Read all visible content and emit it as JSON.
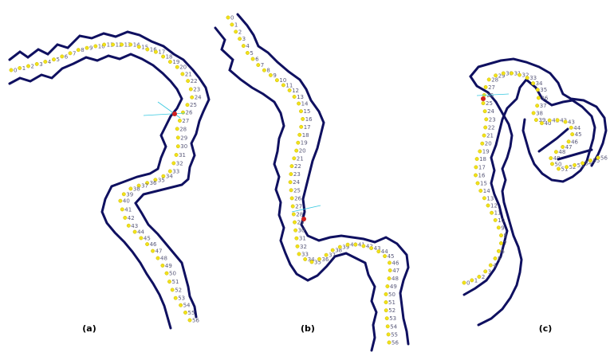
{
  "panels": [
    {
      "id": "a",
      "caption": "(a)",
      "labels": [
        "0",
        "1",
        "2",
        "3",
        "4",
        "5",
        "6",
        "7",
        "8",
        "9",
        "10",
        "11",
        "12",
        "13",
        "14",
        "15",
        "16",
        "17",
        "18",
        "19",
        "20",
        "21",
        "22",
        "23",
        "24",
        "25",
        "26",
        "27",
        "28",
        "29",
        "30",
        "31",
        "32",
        "33",
        "34",
        "35",
        "36",
        "37",
        "38",
        "39",
        "40",
        "41",
        "42",
        "43",
        "44",
        "45",
        "46",
        "47",
        "48",
        "49",
        "50",
        "51",
        "52",
        "53",
        "54",
        "55",
        "56"
      ]
    },
    {
      "id": "b",
      "caption": "(b)",
      "labels": [
        "0",
        "1",
        "2",
        "3",
        "4",
        "5",
        "6",
        "7",
        "8",
        "9",
        "10",
        "11",
        "12",
        "13",
        "14",
        "15",
        "16",
        "17",
        "18",
        "19",
        "20",
        "21",
        "22",
        "23",
        "24",
        "25",
        "26",
        "27",
        "28",
        "29",
        "30",
        "31",
        "32",
        "33",
        "34",
        "35",
        "36",
        "37",
        "38",
        "39",
        "40",
        "41",
        "42",
        "43",
        "44",
        "45",
        "46",
        "47",
        "48",
        "49",
        "50",
        "51",
        "52",
        "53",
        "54",
        "55",
        "56"
      ]
    },
    {
      "id": "c",
      "caption": "(c)",
      "labels": [
        "0",
        "1",
        "2",
        "3",
        "4",
        "5",
        "6",
        "7",
        "8",
        "9",
        "10",
        "11",
        "12",
        "13",
        "14",
        "15",
        "16",
        "17",
        "18",
        "19",
        "20",
        "21",
        "22",
        "23",
        "24",
        "25",
        "26",
        "27",
        "28",
        "29",
        "30",
        "31",
        "32",
        "33",
        "34",
        "35",
        "36",
        "37",
        "38",
        "39",
        "40",
        "41",
        "42",
        "43",
        "44",
        "45",
        "46",
        "47",
        "48",
        "49",
        "50",
        "51",
        "52",
        "53",
        "54",
        "55",
        "56"
      ]
    }
  ]
}
